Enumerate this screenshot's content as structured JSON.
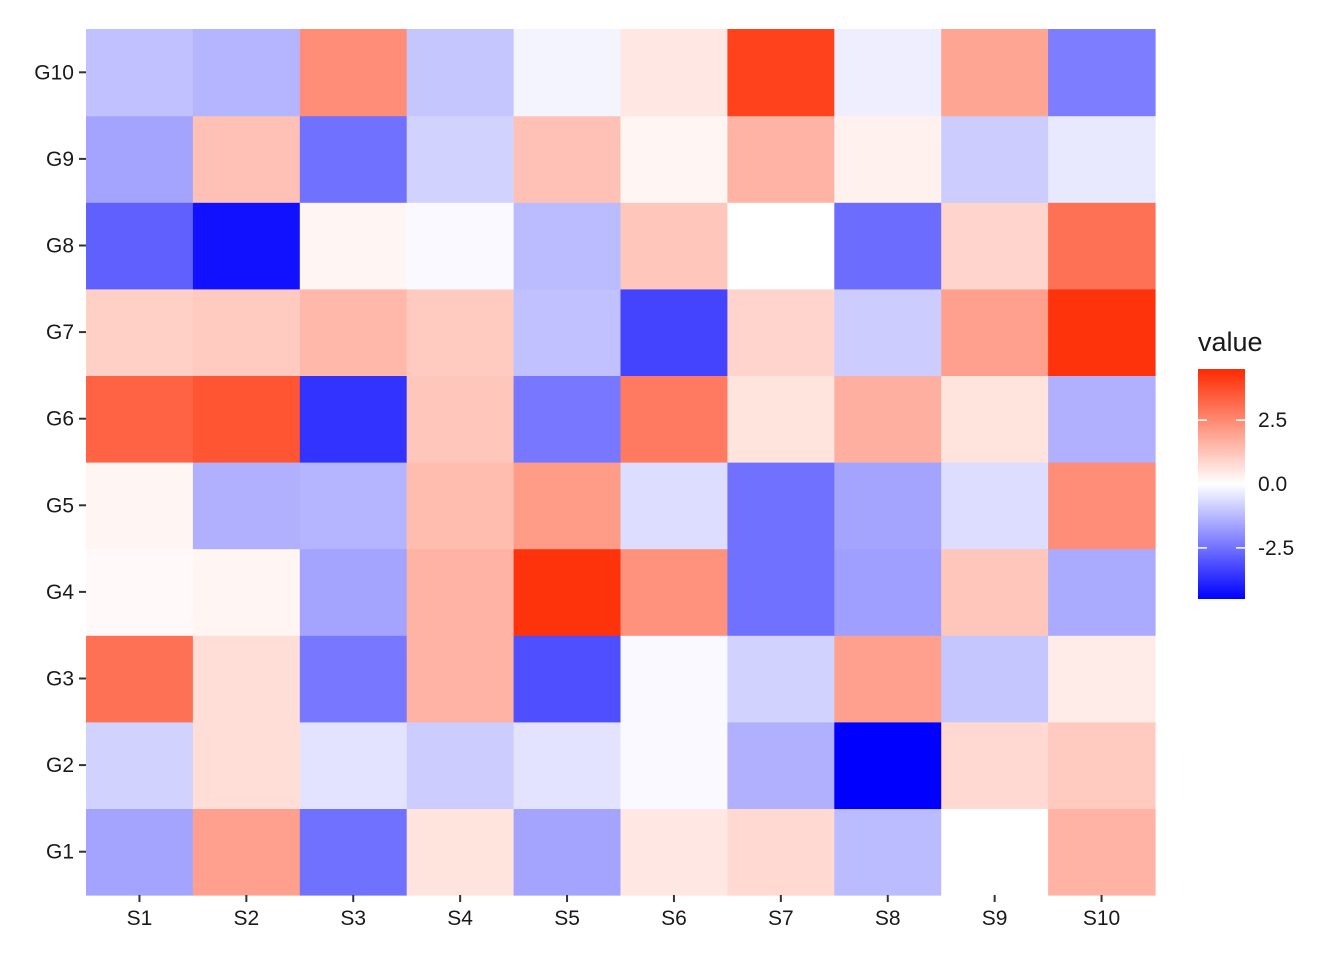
{
  "chart_data": {
    "type": "heatmap",
    "x_categories": [
      "S1",
      "S2",
      "S3",
      "S4",
      "S5",
      "S6",
      "S7",
      "S8",
      "S9",
      "S10"
    ],
    "y_categories": [
      "G1",
      "G2",
      "G3",
      "G4",
      "G5",
      "G6",
      "G7",
      "G8",
      "G9",
      "G10"
    ],
    "values": [
      [
        -1.6,
        2.0,
        -2.5,
        0.6,
        -1.6,
        0.5,
        0.8,
        -1.2,
        0.0,
        1.6
      ],
      [
        -0.8,
        0.7,
        -0.5,
        -0.9,
        -0.5,
        -0.1,
        -1.4,
        -4.5,
        0.8,
        1.1
      ],
      [
        3.0,
        0.7,
        -2.4,
        1.6,
        -3.1,
        -0.1,
        -0.8,
        2.0,
        -1.0,
        0.4
      ],
      [
        0.1,
        0.2,
        -1.6,
        1.6,
        4.3,
        2.3,
        -2.5,
        -1.7,
        1.2,
        -1.5
      ],
      [
        0.2,
        -1.4,
        -1.3,
        1.4,
        2.1,
        -0.6,
        -2.5,
        -1.6,
        -0.6,
        2.4
      ],
      [
        3.3,
        3.6,
        -3.6,
        1.2,
        -2.4,
        2.8,
        0.6,
        1.7,
        0.6,
        -1.4
      ],
      [
        1.0,
        1.1,
        1.5,
        1.1,
        -1.1,
        -3.3,
        0.9,
        -0.9,
        2.0,
        4.3
      ],
      [
        -2.8,
        -4.2,
        0.2,
        -0.1,
        -1.2,
        1.2,
        0.0,
        -2.6,
        0.9,
        3.0
      ],
      [
        -1.6,
        1.3,
        -2.5,
        -0.8,
        1.3,
        0.2,
        1.6,
        0.3,
        -0.9,
        -0.4
      ],
      [
        -1.1,
        -1.3,
        2.4,
        -1.0,
        -0.2,
        0.5,
        4.0,
        -0.3,
        1.9,
        -2.3
      ]
    ],
    "legend": {
      "title": "value",
      "ticks": [
        {
          "value": 2.5,
          "label": "2.5"
        },
        {
          "value": 0.0,
          "label": "0.0"
        },
        {
          "value": -2.5,
          "label": "-2.5"
        }
      ],
      "min": -4.5,
      "max": 4.5,
      "position": "right"
    },
    "colors": {
      "low": "#0000ff",
      "mid": "#ffffff",
      "high": "#ff2a00"
    }
  }
}
